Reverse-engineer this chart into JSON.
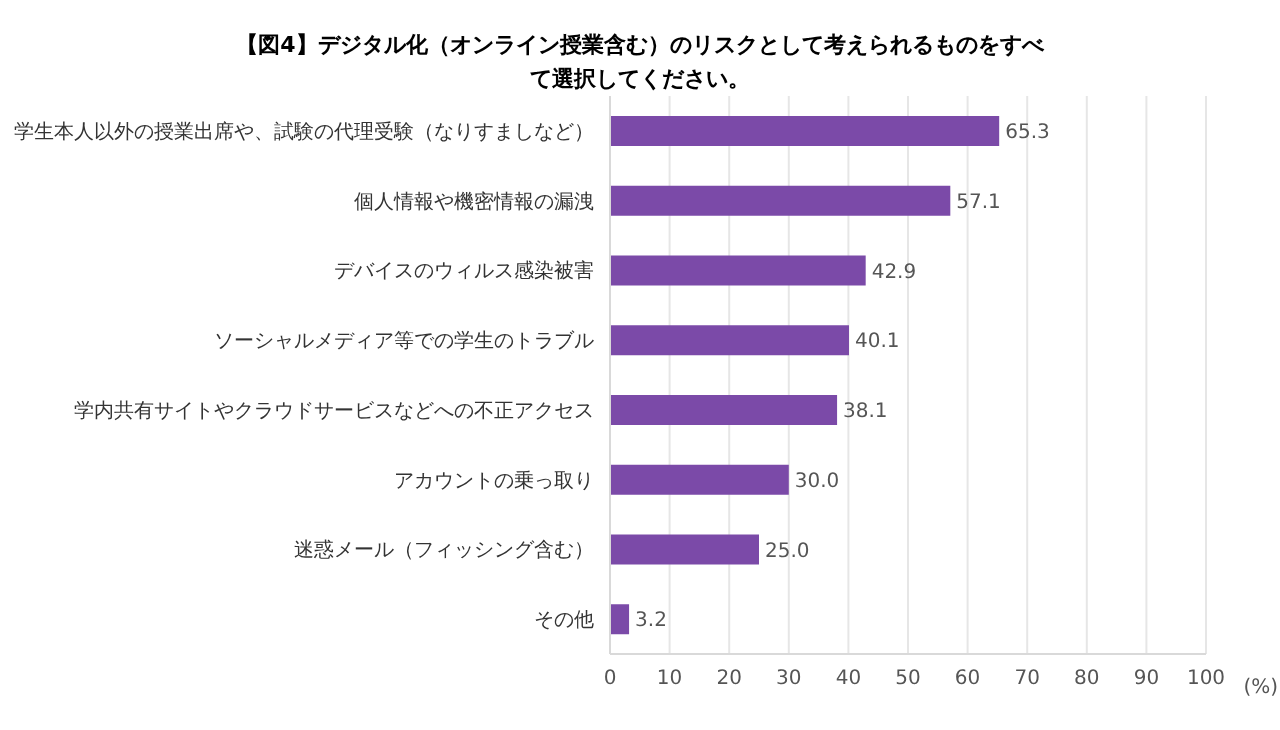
{
  "chart_data": {
    "type": "bar",
    "orientation": "horizontal",
    "title": "【図4】デジタル化（オンライン授業含む）のリスクとして考えられるものをすべて選択してください。",
    "categories": [
      "学生本人以外の授業出席や、試験の代理受験（なりすましなど）",
      "個人情報や機密情報の漏洩",
      "デバイスのウィルス感染被害",
      "ソーシャルメディア等での学生のトラブル",
      "学内共有サイトやクラウドサービスなどへの不正アクセス",
      "アカウントの乗っ取り",
      "迷惑メール（フィッシング含む）",
      "その他"
    ],
    "values": [
      65.3,
      57.1,
      42.9,
      40.1,
      38.1,
      30.0,
      25.0,
      3.2
    ],
    "color": "#7b4aa8",
    "xlabel": "(%)",
    "xlim": [
      0,
      100
    ],
    "xticks": [
      0,
      10,
      20,
      30,
      40,
      50,
      60,
      70,
      80,
      90,
      100
    ],
    "grid": "x",
    "value_labels": [
      "65.3",
      "57.1",
      "42.9",
      "40.1",
      "38.1",
      "30.0",
      "25.0",
      "3.2"
    ]
  }
}
